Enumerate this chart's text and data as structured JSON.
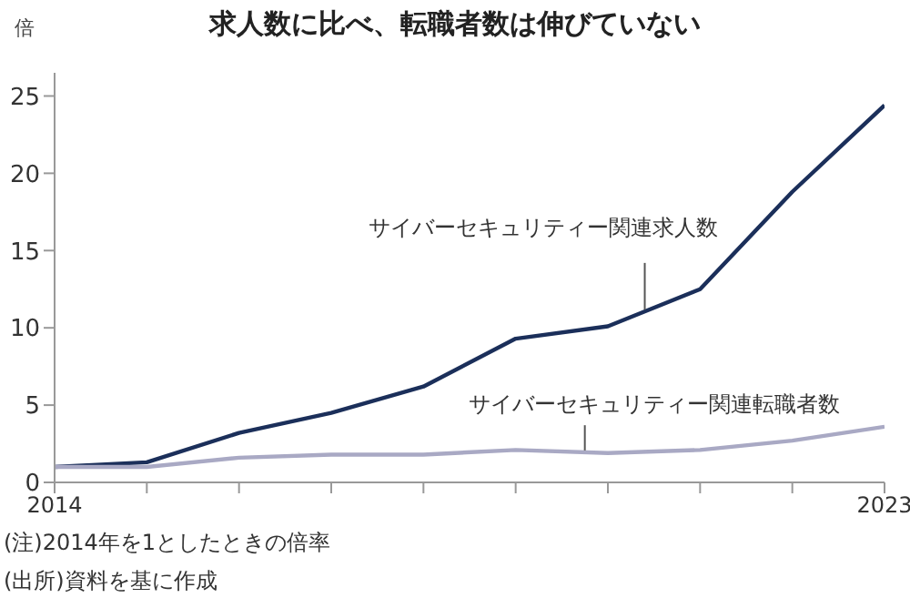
{
  "chart_data": {
    "type": "line",
    "title": "求人数に比べ、転職者数は伸びていない",
    "ylabel": "倍",
    "x": [
      2014,
      2015,
      2016,
      2017,
      2018,
      2019,
      2020,
      2021,
      2022,
      2023
    ],
    "series": [
      {
        "name": "サイバーセキュリティー関連求人数",
        "color": "#1b2f5a",
        "values": [
          1.0,
          1.3,
          3.2,
          4.5,
          6.2,
          9.3,
          10.1,
          12.5,
          18.8,
          24.4
        ]
      },
      {
        "name": "サイバーセキュリティー関連転職者数",
        "color": "#a9a9c4",
        "values": [
          1.0,
          1.0,
          1.6,
          1.8,
          1.8,
          2.1,
          1.9,
          2.1,
          2.7,
          3.6
        ]
      }
    ],
    "xlim": [
      2014,
      2023
    ],
    "xticks": [
      2014,
      {
        "value": 2015,
        "label": null
      },
      {
        "value": 2016,
        "label": null
      },
      {
        "value": 2017,
        "label": null
      },
      {
        "value": 2018,
        "label": null
      },
      {
        "value": 2019,
        "label": null
      },
      {
        "value": 2020,
        "label": null
      },
      {
        "value": 2021,
        "label": null
      },
      {
        "value": 2022,
        "label": null
      },
      2023
    ],
    "ylim": [
      0,
      26.5
    ],
    "yticks": [
      0,
      5,
      10,
      15,
      20,
      25
    ],
    "grid": false,
    "legend": false,
    "marker": "none",
    "line_style": "solid",
    "annotations": [
      "(注)2014年を1としたときの倍率",
      "(出所)資料を基に作成"
    ]
  }
}
